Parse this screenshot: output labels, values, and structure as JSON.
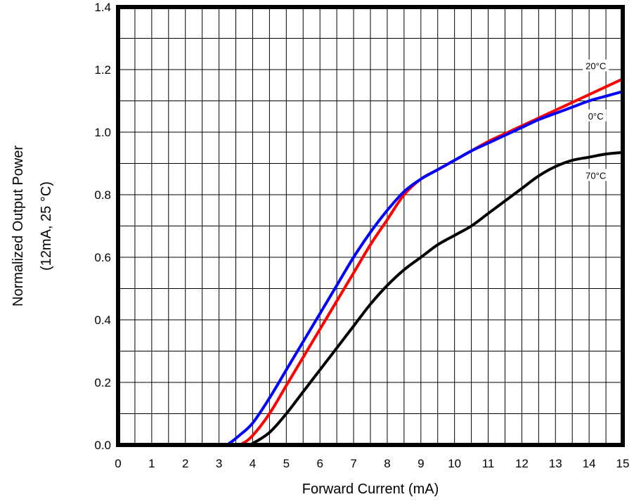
{
  "chart_data": {
    "type": "line",
    "title": "",
    "xlabel": "Forward Current (mA)",
    "ylabel_lines": [
      "Normalized Output Power",
      "(12mA, 25 °C)"
    ],
    "xlim": [
      0,
      15
    ],
    "ylim": [
      0,
      1.4
    ],
    "xticks": [
      0,
      1,
      2,
      3,
      4,
      5,
      6,
      7,
      8,
      9,
      10,
      11,
      12,
      13,
      14,
      15
    ],
    "yticks": [
      0.0,
      0.2,
      0.4,
      0.6,
      0.8,
      1.0,
      1.2,
      1.4
    ],
    "ytick_labels": [
      "0.0",
      "0.2",
      "0.4",
      "0.6",
      "0.8",
      "1.0",
      "1.2",
      "1.4"
    ],
    "grid": true,
    "grid_x_step": 0.5,
    "grid_y_step": 0.1,
    "series": [
      {
        "name": "20°C",
        "color": "#ff0000",
        "points": [
          [
            0,
            0
          ],
          [
            3.5,
            0
          ],
          [
            3.7,
            0.005
          ],
          [
            4,
            0.03
          ],
          [
            4.5,
            0.1
          ],
          [
            5,
            0.19
          ],
          [
            5.5,
            0.28
          ],
          [
            6,
            0.37
          ],
          [
            6.5,
            0.46
          ],
          [
            7,
            0.55
          ],
          [
            7.5,
            0.64
          ],
          [
            8,
            0.72
          ],
          [
            8.5,
            0.8
          ],
          [
            9,
            0.85
          ],
          [
            9.5,
            0.88
          ],
          [
            10,
            0.91
          ],
          [
            10.5,
            0.94
          ],
          [
            11,
            0.97
          ],
          [
            11.5,
            0.995
          ],
          [
            12,
            1.02
          ],
          [
            12.5,
            1.045
          ],
          [
            13,
            1.07
          ],
          [
            13.5,
            1.095
          ],
          [
            14,
            1.12
          ],
          [
            14.5,
            1.145
          ],
          [
            15,
            1.17
          ]
        ]
      },
      {
        "name": "0°C",
        "color": "#0000ff",
        "points": [
          [
            0,
            0
          ],
          [
            3.1,
            0
          ],
          [
            3.3,
            0.005
          ],
          [
            3.6,
            0.03
          ],
          [
            4,
            0.07
          ],
          [
            4.5,
            0.15
          ],
          [
            5,
            0.24
          ],
          [
            5.5,
            0.33
          ],
          [
            6,
            0.42
          ],
          [
            6.5,
            0.51
          ],
          [
            7,
            0.6
          ],
          [
            7.5,
            0.68
          ],
          [
            8,
            0.75
          ],
          [
            8.5,
            0.81
          ],
          [
            9,
            0.85
          ],
          [
            9.5,
            0.88
          ],
          [
            10,
            0.91
          ],
          [
            10.5,
            0.94
          ],
          [
            11,
            0.965
          ],
          [
            11.5,
            0.99
          ],
          [
            12,
            1.015
          ],
          [
            12.5,
            1.04
          ],
          [
            13,
            1.06
          ],
          [
            13.5,
            1.08
          ],
          [
            14,
            1.1
          ],
          [
            14.5,
            1.115
          ],
          [
            15,
            1.13
          ]
        ]
      },
      {
        "name": "70°C",
        "color": "#000000",
        "points": [
          [
            0,
            0
          ],
          [
            3.8,
            0
          ],
          [
            4,
            0.005
          ],
          [
            4.5,
            0.04
          ],
          [
            5,
            0.1
          ],
          [
            5.5,
            0.17
          ],
          [
            6,
            0.24
          ],
          [
            6.5,
            0.31
          ],
          [
            7,
            0.38
          ],
          [
            7.5,
            0.45
          ],
          [
            8,
            0.51
          ],
          [
            8.5,
            0.56
          ],
          [
            9,
            0.6
          ],
          [
            9.5,
            0.64
          ],
          [
            10,
            0.67
          ],
          [
            10.5,
            0.7
          ],
          [
            11,
            0.74
          ],
          [
            11.5,
            0.78
          ],
          [
            12,
            0.82
          ],
          [
            12.5,
            0.86
          ],
          [
            13,
            0.89
          ],
          [
            13.5,
            0.91
          ],
          [
            14,
            0.92
          ],
          [
            14.5,
            0.93
          ],
          [
            15,
            0.935
          ]
        ]
      }
    ],
    "curve_labels": [
      {
        "series": "20°C",
        "text": "20°C",
        "x": 14.2,
        "y": 1.21
      },
      {
        "series": "0°C",
        "text": "0°C",
        "x": 14.2,
        "y": 1.05
      },
      {
        "series": "70°C",
        "text": "70°C",
        "x": 14.2,
        "y": 0.86
      }
    ]
  }
}
